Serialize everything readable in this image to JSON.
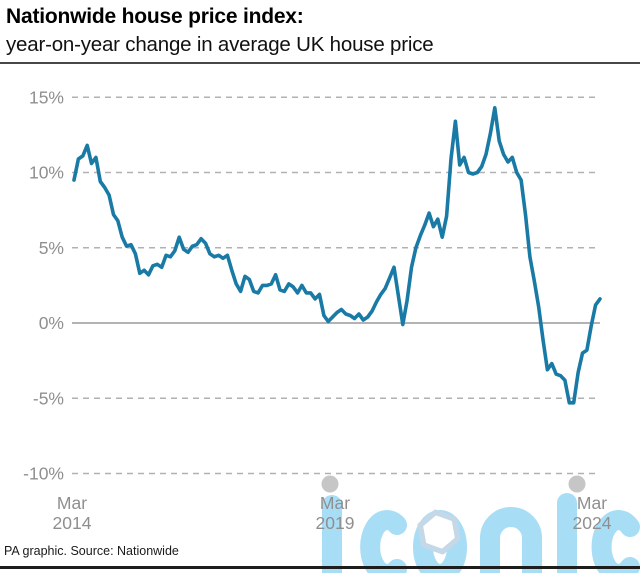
{
  "header": {
    "title": "Nationwide house price index:",
    "subtitle": "year-on-year change in average UK house price"
  },
  "footer": {
    "source": "PA graphic. Source: Nationwide"
  },
  "watermark": {
    "text": "iconic",
    "color": "#a8ddf6",
    "hexagon_color": "#c4d8e7"
  },
  "chart_data": {
    "type": "line",
    "title": "Nationwide house price index: year-on-year change in average UK house price",
    "x_start": "Mar 2014",
    "x_end": "Mar 2024",
    "frequency": "monthly",
    "ylim": [
      -10,
      15
    ],
    "yticks": [
      15,
      10,
      5,
      0,
      -5,
      -10
    ],
    "ytick_suffix": "%",
    "grid": "dashed horizontal, solid zero line",
    "legend": "none",
    "xticks": [
      {
        "line1": "Mar",
        "line2": "2014"
      },
      {
        "line1": "Mar",
        "line2": "2019"
      },
      {
        "line1": "Mar",
        "line2": "2024"
      }
    ],
    "tick_dots": [
      "Mar 2019",
      "Mar 2024"
    ],
    "line_color": "#1a7aa6",
    "values": [
      9.5,
      10.9,
      11.1,
      11.8,
      10.6,
      11.0,
      9.4,
      9.0,
      8.5,
      7.2,
      6.8,
      5.7,
      5.1,
      5.2,
      4.6,
      3.3,
      3.5,
      3.2,
      3.8,
      3.9,
      3.7,
      4.5,
      4.4,
      4.8,
      5.7,
      4.9,
      4.7,
      5.1,
      5.2,
      5.6,
      5.3,
      4.6,
      4.4,
      4.5,
      4.3,
      4.5,
      3.5,
      2.6,
      2.1,
      3.1,
      2.9,
      2.1,
      2.0,
      2.5,
      2.5,
      2.6,
      3.2,
      2.2,
      2.1,
      2.6,
      2.4,
      2.0,
      2.5,
      2.0,
      2.0,
      1.6,
      1.9,
      0.5,
      0.1,
      0.4,
      0.7,
      0.9,
      0.6,
      0.5,
      0.3,
      0.6,
      0.2,
      0.4,
      0.8,
      1.4,
      1.9,
      2.3,
      3.0,
      3.7,
      1.8,
      -0.1,
      1.5,
      3.7,
      5.0,
      5.8,
      6.5,
      7.3,
      6.4,
      6.9,
      5.7,
      7.1,
      10.9,
      13.4,
      10.5,
      11.0,
      10.0,
      9.9,
      10.0,
      10.4,
      11.2,
      12.6,
      14.3,
      12.1,
      11.2,
      10.7,
      11.0,
      10.0,
      9.5,
      7.2,
      4.4,
      2.8,
      1.1,
      -1.1,
      -3.1,
      -2.7,
      -3.4,
      -3.5,
      -3.8,
      -5.3,
      -5.3,
      -3.3,
      -2.0,
      -1.8,
      -0.2,
      1.2,
      1.6
    ]
  }
}
